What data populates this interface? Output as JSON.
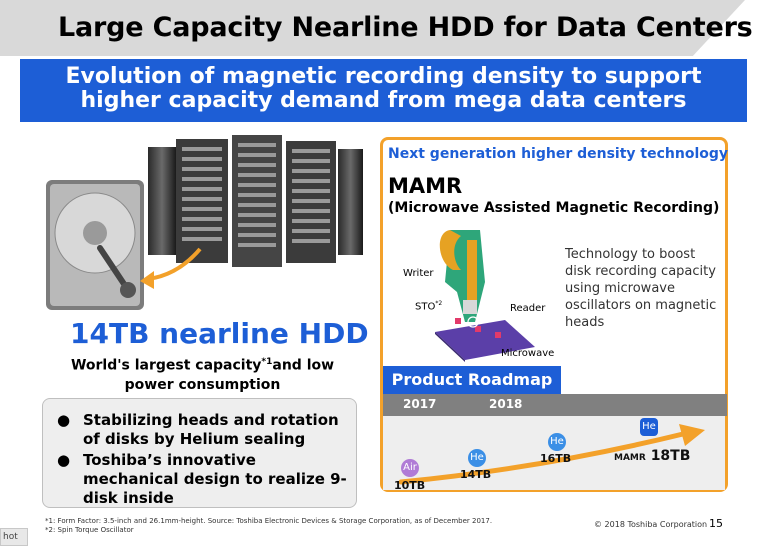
{
  "header": {
    "title": "Large Capacity Nearline HDD for Data Centers",
    "subtitle_line1": "Evolution of magnetic recording density to support",
    "subtitle_line2": "higher capacity demand from mega data centers"
  },
  "left": {
    "product_title": "14TB nearline HDD",
    "product_sub_part1": "World's largest capacity",
    "product_sub_sup": "*1",
    "product_sub_part2": "and low",
    "product_sub_line2": "power consumption",
    "features": [
      {
        "bullet": "●",
        "text": "Stabilizing heads and rotation of disks by Helium sealing"
      },
      {
        "bullet": "●",
        "text": "Toshiba’s innovative mechanical design to realize 9-disk inside"
      }
    ]
  },
  "right": {
    "heading": "Next generation higher density technology",
    "mamr_title": "MAMR",
    "mamr_full": "(Microwave Assisted Magnetic Recording)",
    "diagram_labels": {
      "writer": "Writer",
      "sto": "STO",
      "sto_sup": "*2",
      "reader": "Reader",
      "microwave": "Microwave"
    },
    "description": "Technology to boost disk recording capacity using microwave oscillators on magnetic heads",
    "roadmap": {
      "label": "Product Roadmap",
      "years": [
        "2017",
        "2018"
      ],
      "items": [
        {
          "badge": "Air",
          "capacity": "10TB"
        },
        {
          "badge": "He",
          "capacity": "14TB"
        },
        {
          "badge": "He",
          "capacity": "16TB"
        },
        {
          "badge": "He",
          "prefix": "MAMR",
          "capacity": "18TB"
        }
      ]
    }
  },
  "footer": {
    "note1": "*1: Form Factor: 3.5-inch and 26.1mm-height. Source: Toshiba Electronic Devices & Storage Corporation, as of December 2017.",
    "note2": "*2: Spin Torque Oscillator",
    "copyright": "© 2018 Toshiba Corporation",
    "page": "15",
    "corner_tab": "hot"
  },
  "colors": {
    "accent_blue": "#1d5ed6",
    "orange": "#f3a12a",
    "purple": "#b07bd6",
    "header_gray": "#d9d9d9"
  }
}
